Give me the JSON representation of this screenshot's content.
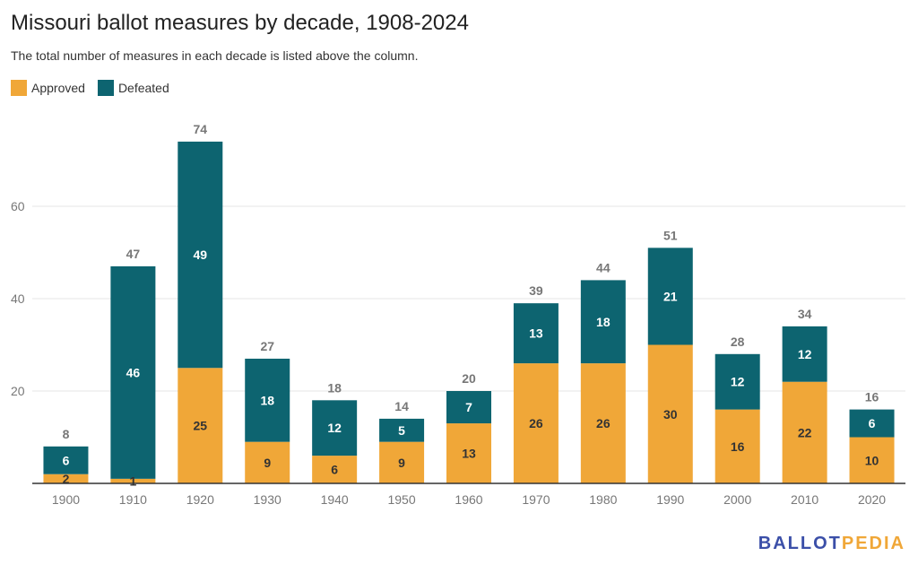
{
  "colors": {
    "approved": "#f0a738",
    "defeated": "#0d6470",
    "grid": "#e4e4e4",
    "axis": "#333333",
    "tick_text": "#777777",
    "total_text": "#777777"
  },
  "chart_data": {
    "type": "bar",
    "stacked": true,
    "title": "Missouri ballot measures by decade, 1908-2024",
    "subtitle": "The total number of measures in each decade is listed above the column.",
    "categories": [
      "1900",
      "1910",
      "1920",
      "1930",
      "1940",
      "1950",
      "1960",
      "1970",
      "1980",
      "1990",
      "2000",
      "2010",
      "2020"
    ],
    "series": [
      {
        "name": "Approved",
        "values": [
          2,
          1,
          25,
          9,
          6,
          9,
          13,
          26,
          26,
          30,
          16,
          22,
          10
        ]
      },
      {
        "name": "Defeated",
        "values": [
          6,
          46,
          49,
          18,
          12,
          5,
          7,
          13,
          18,
          21,
          12,
          12,
          6
        ]
      }
    ],
    "totals": [
      8,
      47,
      74,
      27,
      18,
      14,
      20,
      39,
      44,
      51,
      28,
      34,
      16
    ],
    "yticks": [
      20,
      40,
      60
    ],
    "ylim": [
      0,
      74
    ],
    "grid": true,
    "legend": "top-left"
  },
  "brand": {
    "part1": "BALLOT",
    "part2": "PEDIA"
  }
}
